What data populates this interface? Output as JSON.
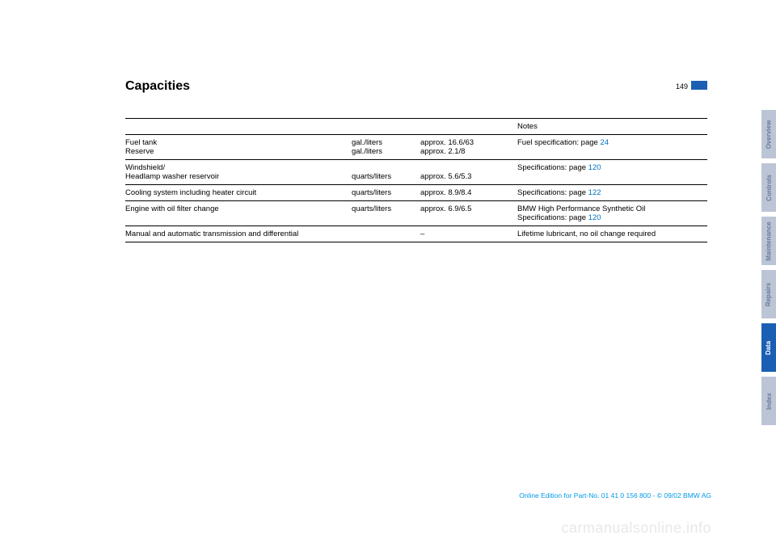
{
  "header": {
    "title": "Capacities",
    "page_number": "149"
  },
  "table": {
    "columns": [
      "",
      "",
      "",
      "Notes"
    ],
    "rows": [
      {
        "c0": "Fuel tank\nReserve",
        "c1": "gal./liters\ngal./liters",
        "c2": "approx. 16.6/63\napprox. 2.1/8",
        "c3_text": "Fuel specification: page ",
        "c3_link": "24"
      },
      {
        "c0": "Windshield/\nHeadlamp washer reservoir",
        "c1": "\nquarts/liters",
        "c2": "\napprox. 5.6/5.3",
        "c3_text": "Specifications: page ",
        "c3_link": "120"
      },
      {
        "c0": "Cooling system including heater circuit",
        "c1": "quarts/liters",
        "c2": "approx. 8.9/8.4",
        "c3_text": "Specifications: page ",
        "c3_link": "122"
      },
      {
        "c0": "Engine with oil filter change",
        "c1": "quarts/liters",
        "c2": "approx. 6.9/6.5",
        "c3_text": "BMW High Performance Synthetic Oil\nSpecifications: page ",
        "c3_link": "120"
      },
      {
        "c0": "Manual and automatic transmission and differential",
        "c1": "",
        "c2": "–",
        "c3_text": "Lifetime lubricant, no oil change required",
        "c3_link": ""
      }
    ]
  },
  "tabs": [
    {
      "label": "Overview",
      "active": false
    },
    {
      "label": "Controls",
      "active": false
    },
    {
      "label": "Maintenance",
      "active": false
    },
    {
      "label": "Repairs",
      "active": false
    },
    {
      "label": "Data",
      "active": true
    },
    {
      "label": "Index",
      "active": false
    }
  ],
  "footer": "Online Edition for Part-No. 01 41 0 156 800 - © 09/02 BMW AG",
  "watermark": "carmanualsonline.info"
}
